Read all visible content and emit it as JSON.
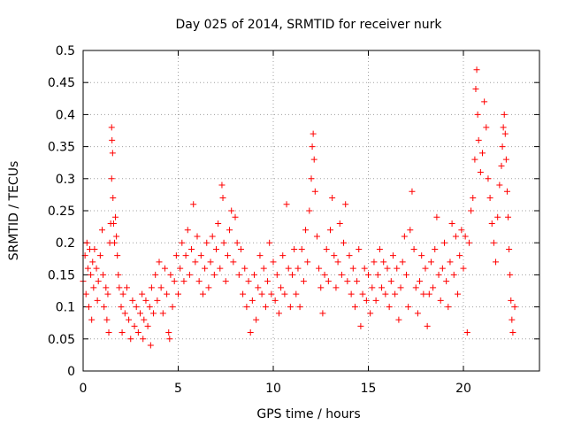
{
  "chart_data": {
    "type": "scatter",
    "title": "Day 025 of 2014, SRMTID for receiver nurk",
    "xlabel": "GPS time / hours",
    "ylabel": "SRMTID / TECUs",
    "xlim": [
      0,
      24
    ],
    "ylim": [
      0,
      0.5
    ],
    "grid": true,
    "marker": "plus",
    "color": "#ff0000",
    "x_ticks": [
      0,
      5,
      10,
      15,
      20
    ],
    "x_tick_labels": [
      "0",
      "5",
      "10",
      "15",
      "20"
    ],
    "y_ticks": [
      0,
      0.05,
      0.1,
      0.15,
      0.2,
      0.25,
      0.3,
      0.35,
      0.4,
      0.45,
      0.5
    ],
    "y_tick_labels": [
      "0",
      "0.05",
      "0.1",
      "0.15",
      "0.2",
      "0.25",
      "0.3",
      "0.35",
      "0.4",
      "0.45",
      "0.5"
    ],
    "series": [
      {
        "name": "SRMTID",
        "points": [
          [
            0.0,
            0.14
          ],
          [
            0.1,
            0.18
          ],
          [
            0.15,
            0.12
          ],
          [
            0.2,
            0.2
          ],
          [
            0.25,
            0.16
          ],
          [
            0.3,
            0.1
          ],
          [
            0.35,
            0.19
          ],
          [
            0.4,
            0.15
          ],
          [
            0.45,
            0.08
          ],
          [
            0.5,
            0.17
          ],
          [
            0.55,
            0.13
          ],
          [
            0.6,
            0.19
          ],
          [
            0.7,
            0.16
          ],
          [
            0.75,
            0.11
          ],
          [
            0.8,
            0.14
          ],
          [
            0.9,
            0.18
          ],
          [
            1.0,
            0.22
          ],
          [
            1.05,
            0.15
          ],
          [
            1.1,
            0.1
          ],
          [
            1.2,
            0.13
          ],
          [
            1.25,
            0.08
          ],
          [
            1.3,
            0.12
          ],
          [
            1.35,
            0.06
          ],
          [
            1.4,
            0.2
          ],
          [
            1.45,
            0.23
          ],
          [
            1.5,
            0.3
          ],
          [
            1.5,
            0.38
          ],
          [
            1.52,
            0.36
          ],
          [
            1.55,
            0.34
          ],
          [
            1.57,
            0.27
          ],
          [
            1.6,
            0.23
          ],
          [
            1.65,
            0.2
          ],
          [
            1.7,
            0.24
          ],
          [
            1.75,
            0.21
          ],
          [
            1.8,
            0.18
          ],
          [
            1.85,
            0.15
          ],
          [
            1.9,
            0.13
          ],
          [
            2.0,
            0.1
          ],
          [
            2.05,
            0.06
          ],
          [
            2.1,
            0.12
          ],
          [
            2.2,
            0.09
          ],
          [
            2.3,
            0.13
          ],
          [
            2.4,
            0.08
          ],
          [
            2.5,
            0.05
          ],
          [
            2.6,
            0.11
          ],
          [
            2.7,
            0.07
          ],
          [
            2.8,
            0.1
          ],
          [
            2.9,
            0.06
          ],
          [
            3.0,
            0.09
          ],
          [
            3.1,
            0.12
          ],
          [
            3.15,
            0.05
          ],
          [
            3.2,
            0.08
          ],
          [
            3.3,
            0.11
          ],
          [
            3.4,
            0.07
          ],
          [
            3.5,
            0.1
          ],
          [
            3.55,
            0.04
          ],
          [
            3.6,
            0.13
          ],
          [
            3.7,
            0.09
          ],
          [
            3.8,
            0.15
          ],
          [
            3.9,
            0.11
          ],
          [
            4.0,
            0.17
          ],
          [
            4.1,
            0.13
          ],
          [
            4.2,
            0.09
          ],
          [
            4.3,
            0.16
          ],
          [
            4.4,
            0.12
          ],
          [
            4.5,
            0.06
          ],
          [
            4.55,
            0.05
          ],
          [
            4.6,
            0.15
          ],
          [
            4.7,
            0.1
          ],
          [
            4.8,
            0.14
          ],
          [
            4.9,
            0.18
          ],
          [
            5.0,
            0.12
          ],
          [
            5.1,
            0.16
          ],
          [
            5.2,
            0.2
          ],
          [
            5.3,
            0.14
          ],
          [
            5.4,
            0.18
          ],
          [
            5.5,
            0.22
          ],
          [
            5.6,
            0.15
          ],
          [
            5.7,
            0.19
          ],
          [
            5.8,
            0.26
          ],
          [
            5.9,
            0.17
          ],
          [
            6.0,
            0.21
          ],
          [
            6.1,
            0.14
          ],
          [
            6.2,
            0.18
          ],
          [
            6.3,
            0.12
          ],
          [
            6.4,
            0.16
          ],
          [
            6.5,
            0.2
          ],
          [
            6.6,
            0.13
          ],
          [
            6.7,
            0.17
          ],
          [
            6.8,
            0.21
          ],
          [
            6.9,
            0.15
          ],
          [
            7.0,
            0.19
          ],
          [
            7.1,
            0.23
          ],
          [
            7.2,
            0.16
          ],
          [
            7.3,
            0.29
          ],
          [
            7.35,
            0.27
          ],
          [
            7.4,
            0.2
          ],
          [
            7.5,
            0.14
          ],
          [
            7.6,
            0.18
          ],
          [
            7.7,
            0.22
          ],
          [
            7.8,
            0.25
          ],
          [
            7.9,
            0.17
          ],
          [
            8.0,
            0.24
          ],
          [
            8.1,
            0.2
          ],
          [
            8.2,
            0.15
          ],
          [
            8.3,
            0.19
          ],
          [
            8.4,
            0.12
          ],
          [
            8.5,
            0.16
          ],
          [
            8.6,
            0.1
          ],
          [
            8.7,
            0.14
          ],
          [
            8.8,
            0.06
          ],
          [
            8.9,
            0.11
          ],
          [
            9.0,
            0.15
          ],
          [
            9.1,
            0.08
          ],
          [
            9.2,
            0.13
          ],
          [
            9.3,
            0.18
          ],
          [
            9.4,
            0.12
          ],
          [
            9.5,
            0.16
          ],
          [
            9.6,
            0.1
          ],
          [
            9.7,
            0.14
          ],
          [
            9.8,
            0.2
          ],
          [
            9.9,
            0.12
          ],
          [
            10.0,
            0.17
          ],
          [
            10.1,
            0.11
          ],
          [
            10.2,
            0.15
          ],
          [
            10.3,
            0.09
          ],
          [
            10.4,
            0.13
          ],
          [
            10.5,
            0.18
          ],
          [
            10.6,
            0.12
          ],
          [
            10.7,
            0.26
          ],
          [
            10.8,
            0.16
          ],
          [
            10.9,
            0.1
          ],
          [
            11.0,
            0.15
          ],
          [
            11.1,
            0.19
          ],
          [
            11.2,
            0.12
          ],
          [
            11.3,
            0.16
          ],
          [
            11.4,
            0.1
          ],
          [
            11.5,
            0.19
          ],
          [
            11.6,
            0.14
          ],
          [
            11.7,
            0.22
          ],
          [
            11.8,
            0.17
          ],
          [
            11.9,
            0.25
          ],
          [
            12.0,
            0.3
          ],
          [
            12.05,
            0.35
          ],
          [
            12.1,
            0.37
          ],
          [
            12.15,
            0.33
          ],
          [
            12.2,
            0.28
          ],
          [
            12.3,
            0.21
          ],
          [
            12.4,
            0.16
          ],
          [
            12.5,
            0.13
          ],
          [
            12.6,
            0.09
          ],
          [
            12.7,
            0.15
          ],
          [
            12.8,
            0.19
          ],
          [
            12.9,
            0.14
          ],
          [
            13.0,
            0.22
          ],
          [
            13.1,
            0.27
          ],
          [
            13.2,
            0.18
          ],
          [
            13.3,
            0.13
          ],
          [
            13.4,
            0.17
          ],
          [
            13.5,
            0.23
          ],
          [
            13.6,
            0.15
          ],
          [
            13.7,
            0.2
          ],
          [
            13.8,
            0.26
          ],
          [
            13.9,
            0.14
          ],
          [
            14.0,
            0.18
          ],
          [
            14.1,
            0.12
          ],
          [
            14.2,
            0.16
          ],
          [
            14.3,
            0.1
          ],
          [
            14.4,
            0.14
          ],
          [
            14.5,
            0.19
          ],
          [
            14.6,
            0.07
          ],
          [
            14.7,
            0.12
          ],
          [
            14.8,
            0.16
          ],
          [
            14.9,
            0.11
          ],
          [
            15.0,
            0.15
          ],
          [
            15.1,
            0.09
          ],
          [
            15.2,
            0.13
          ],
          [
            15.3,
            0.17
          ],
          [
            15.4,
            0.11
          ],
          [
            15.5,
            0.15
          ],
          [
            15.6,
            0.19
          ],
          [
            15.7,
            0.13
          ],
          [
            15.8,
            0.17
          ],
          [
            15.9,
            0.12
          ],
          [
            16.0,
            0.16
          ],
          [
            16.1,
            0.1
          ],
          [
            16.2,
            0.14
          ],
          [
            16.3,
            0.18
          ],
          [
            16.4,
            0.12
          ],
          [
            16.5,
            0.16
          ],
          [
            16.6,
            0.08
          ],
          [
            16.7,
            0.13
          ],
          [
            16.8,
            0.17
          ],
          [
            16.9,
            0.21
          ],
          [
            17.0,
            0.15
          ],
          [
            17.1,
            0.1
          ],
          [
            17.2,
            0.22
          ],
          [
            17.3,
            0.28
          ],
          [
            17.4,
            0.19
          ],
          [
            17.5,
            0.13
          ],
          [
            17.6,
            0.09
          ],
          [
            17.7,
            0.14
          ],
          [
            17.8,
            0.18
          ],
          [
            17.9,
            0.12
          ],
          [
            18.0,
            0.16
          ],
          [
            18.1,
            0.07
          ],
          [
            18.2,
            0.12
          ],
          [
            18.3,
            0.17
          ],
          [
            18.4,
            0.13
          ],
          [
            18.5,
            0.19
          ],
          [
            18.6,
            0.24
          ],
          [
            18.7,
            0.15
          ],
          [
            18.8,
            0.11
          ],
          [
            18.9,
            0.16
          ],
          [
            19.0,
            0.2
          ],
          [
            19.1,
            0.14
          ],
          [
            19.2,
            0.1
          ],
          [
            19.3,
            0.17
          ],
          [
            19.4,
            0.23
          ],
          [
            19.5,
            0.15
          ],
          [
            19.6,
            0.21
          ],
          [
            19.7,
            0.12
          ],
          [
            19.8,
            0.18
          ],
          [
            19.9,
            0.22
          ],
          [
            20.0,
            0.16
          ],
          [
            20.1,
            0.21
          ],
          [
            20.2,
            0.06
          ],
          [
            20.3,
            0.2
          ],
          [
            20.4,
            0.25
          ],
          [
            20.5,
            0.27
          ],
          [
            20.6,
            0.33
          ],
          [
            20.65,
            0.44
          ],
          [
            20.7,
            0.47
          ],
          [
            20.75,
            0.4
          ],
          [
            20.8,
            0.36
          ],
          [
            20.9,
            0.31
          ],
          [
            21.0,
            0.34
          ],
          [
            21.1,
            0.42
          ],
          [
            21.2,
            0.38
          ],
          [
            21.3,
            0.3
          ],
          [
            21.4,
            0.27
          ],
          [
            21.5,
            0.23
          ],
          [
            21.6,
            0.2
          ],
          [
            21.7,
            0.17
          ],
          [
            21.8,
            0.24
          ],
          [
            21.9,
            0.29
          ],
          [
            22.0,
            0.32
          ],
          [
            22.05,
            0.35
          ],
          [
            22.1,
            0.38
          ],
          [
            22.15,
            0.4
          ],
          [
            22.2,
            0.37
          ],
          [
            22.25,
            0.33
          ],
          [
            22.3,
            0.28
          ],
          [
            22.35,
            0.24
          ],
          [
            22.4,
            0.19
          ],
          [
            22.45,
            0.15
          ],
          [
            22.5,
            0.11
          ],
          [
            22.55,
            0.08
          ],
          [
            22.6,
            0.06
          ],
          [
            22.7,
            0.1
          ]
        ]
      }
    ]
  }
}
